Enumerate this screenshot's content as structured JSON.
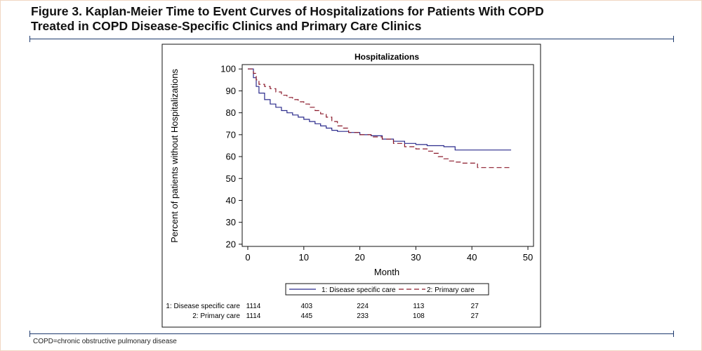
{
  "figure": {
    "title_line1": "Figure 3. Kaplan-Meier Time to Event Curves of Hospitalizations for Patients With COPD",
    "title_line2": "Treated in COPD Disease-Specific Clinics and Primary Care Clinics",
    "footnote": "COPD=chronic obstructive pulmonary disease",
    "rule_color": "#1e3a6e"
  },
  "chart_data": {
    "type": "line",
    "subtype": "kaplan-meier step",
    "title": "Hospitalizations",
    "xlabel": "Month",
    "ylabel": "Percent of patients without Hospitalizations",
    "xlim": [
      -1,
      51
    ],
    "ylim": [
      19,
      102
    ],
    "xticks": [
      0,
      10,
      20,
      30,
      40,
      50
    ],
    "yticks": [
      20,
      30,
      40,
      50,
      60,
      70,
      80,
      90,
      100
    ],
    "grid": false,
    "legend_position": "bottom",
    "series": [
      {
        "name": "1: Disease specific care",
        "color": "#2b2b8c",
        "dash": "solid",
        "x": [
          0,
          0.5,
          1,
          1.5,
          2,
          3,
          4,
          5,
          6,
          7,
          8,
          9,
          10,
          11,
          12,
          13,
          14,
          15,
          16,
          18,
          20,
          22,
          24,
          26,
          28,
          30,
          32,
          35,
          37,
          47
        ],
        "y": [
          100,
          100,
          96,
          92,
          89,
          86,
          84,
          82.5,
          81,
          80,
          79,
          78,
          77,
          76,
          75,
          74,
          73,
          72,
          71.5,
          71,
          70,
          69.5,
          68,
          67,
          66,
          65.5,
          65,
          64.5,
          63,
          63
        ]
      },
      {
        "name": "2: Primary care",
        "color": "#8b1a2b",
        "dash": "dashed",
        "x": [
          0,
          1,
          1.5,
          2,
          3,
          4,
          5,
          6,
          7,
          8,
          9,
          10,
          11,
          12,
          13,
          14,
          15,
          16,
          17,
          18,
          20,
          22,
          24,
          26,
          28,
          30,
          32,
          33,
          34,
          35,
          36,
          37,
          38,
          41,
          47
        ],
        "y": [
          100,
          98,
          95,
          93,
          92,
          91,
          89.5,
          88,
          87,
          86,
          85,
          84,
          82.5,
          81,
          79.5,
          78,
          76,
          74,
          73,
          71,
          70,
          69,
          68,
          66,
          64.5,
          63.5,
          62.5,
          61.5,
          60,
          59,
          58,
          57.5,
          57,
          55,
          55
        ]
      }
    ],
    "risk_table": {
      "times": [
        0,
        10,
        20,
        30,
        40
      ],
      "rows": [
        {
          "label": "1: Disease specific care",
          "counts": [
            "1114",
            "403",
            "224",
            "113",
            "27"
          ]
        },
        {
          "label": "2: Primary care",
          "counts": [
            "1114",
            "445",
            "233",
            "108",
            "27"
          ]
        }
      ]
    }
  }
}
